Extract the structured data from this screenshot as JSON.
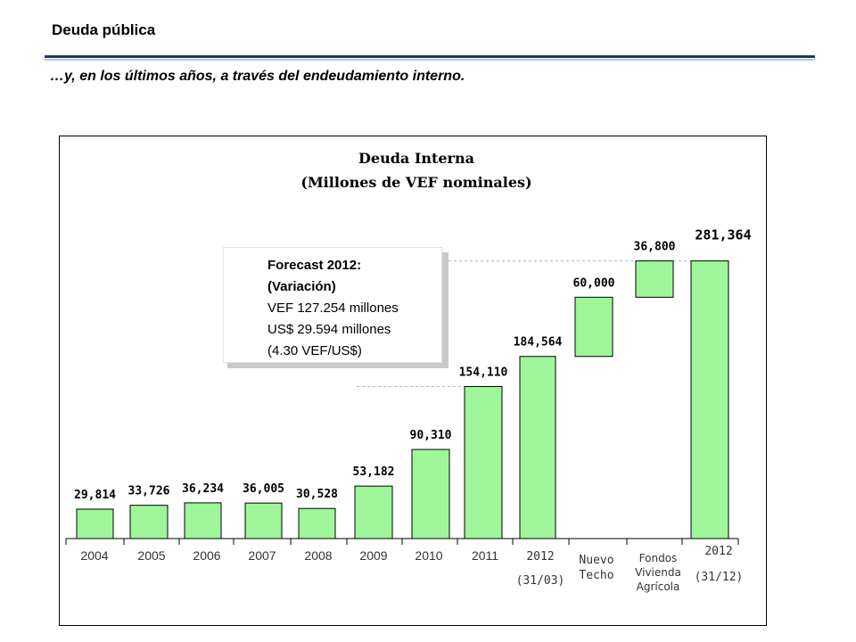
{
  "slide": {
    "title": "Deuda pública",
    "subtitle": "…y, en los últimos años, a través del endeudamiento  interno."
  },
  "callout": {
    "line1": "Forecast 2012:",
    "line2": "(Variación)",
    "line3": "VEF 127.254 millones",
    "line4": "US$ 29.594 millones",
    "line5": "(4.30 VEF/US$)"
  },
  "chart_data": {
    "type": "bar",
    "title": "Deuda Interna",
    "subtitle": "(Millones de VEF nominales)",
    "xlabel": "",
    "ylabel": "",
    "grid": false,
    "legend": "none",
    "bar_color": "#9ef59a",
    "categories": [
      "2004",
      "2005",
      "2006",
      "2007",
      "2008",
      "2009",
      "2010",
      "2011",
      "2012 (31/03)",
      "Nuevo Techo",
      "Fondos Vivienda Agrícola",
      "2012 (31/12)"
    ],
    "category_labels": [
      [
        "2004"
      ],
      [
        "2005"
      ],
      [
        "2006"
      ],
      [
        "2007"
      ],
      [
        "2008"
      ],
      [
        "2009"
      ],
      [
        "2010"
      ],
      [
        "2011"
      ],
      [
        "2012",
        "(31/03)"
      ],
      [
        "Nuevo",
        "Techo"
      ],
      [
        "Fondos",
        "Vivienda",
        "Agrícola"
      ],
      [
        "2012",
        "(31/12)"
      ]
    ],
    "values": [
      29814,
      33726,
      36234,
      36005,
      30528,
      53182,
      90310,
      154110,
      184564,
      60000,
      36800,
      281364
    ],
    "data_labels": [
      "29,814",
      "33,726",
      "36,234",
      "36,005",
      "30,528",
      "53,182",
      "90,310",
      "154,110",
      "184,564",
      "60,000",
      "36,800",
      "281,364"
    ],
    "floating_bases": [
      0,
      0,
      0,
      0,
      0,
      0,
      0,
      0,
      0,
      184564,
      244564,
      0
    ],
    "ylim": [
      0,
      300000
    ]
  }
}
